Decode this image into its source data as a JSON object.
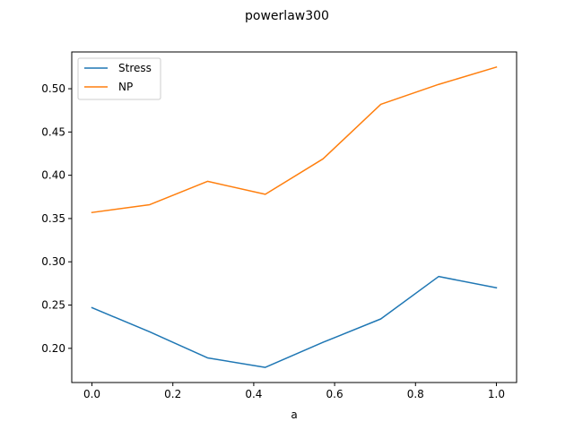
{
  "chart_data": {
    "type": "line",
    "title": "powerlaw300",
    "xlabel": "a",
    "ylabel": "",
    "xlim": [
      -0.05,
      1.05
    ],
    "ylim": [
      0.1605,
      0.5425
    ],
    "xticks": [
      0.0,
      0.2,
      0.4,
      0.6,
      0.8,
      1.0
    ],
    "xtick_labels": [
      "0.0",
      "0.2",
      "0.4",
      "0.6",
      "0.8",
      "1.0"
    ],
    "yticks": [
      0.2,
      0.25,
      0.3,
      0.35,
      0.4,
      0.45,
      0.5
    ],
    "ytick_labels": [
      "0.20",
      "0.25",
      "0.30",
      "0.35",
      "0.40",
      "0.45",
      "0.50"
    ],
    "grid": false,
    "legend_position": "top-left",
    "x": [
      0.0,
      0.142857,
      0.285714,
      0.428571,
      0.571429,
      0.714286,
      0.857143,
      1.0
    ],
    "series": [
      {
        "name": "Stress",
        "color": "#1f77b4",
        "values": [
          0.247,
          0.219,
          0.189,
          0.178,
          0.207,
          0.234,
          0.283,
          0.27
        ]
      },
      {
        "name": "NP",
        "color": "#ff7f0e",
        "values": [
          0.357,
          0.366,
          0.393,
          0.378,
          0.419,
          0.482,
          0.505,
          0.525
        ]
      }
    ]
  }
}
